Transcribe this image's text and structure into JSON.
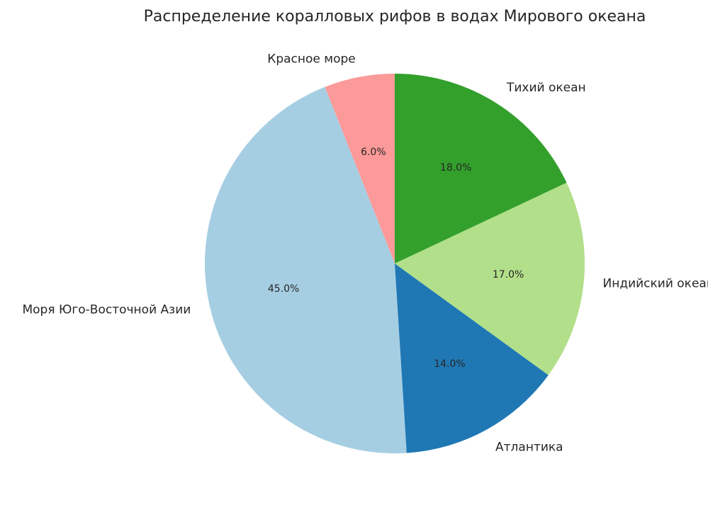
{
  "chart_data": {
    "type": "pie",
    "title": "Распределение коралловых рифов в водах Мирового океана",
    "start_angle_deg": 90,
    "direction": "counterclockwise",
    "slices": [
      {
        "label": "Красное море",
        "value": 6.0,
        "pct_label": "6.0%",
        "color": "#fb9a99"
      },
      {
        "label": "Моря Юго-Восточной Азии",
        "value": 45.0,
        "pct_label": "45.0%",
        "color": "#a6cee3"
      },
      {
        "label": "Атлантика",
        "value": 14.0,
        "pct_label": "14.0%",
        "color": "#1f78b4"
      },
      {
        "label": "Индийский океан",
        "value": 17.0,
        "pct_label": "17.0%",
        "color": "#b2df8a"
      },
      {
        "label": "Тихий океан",
        "value": 18.0,
        "pct_label": "18.0%",
        "color": "#33a02c"
      }
    ]
  }
}
